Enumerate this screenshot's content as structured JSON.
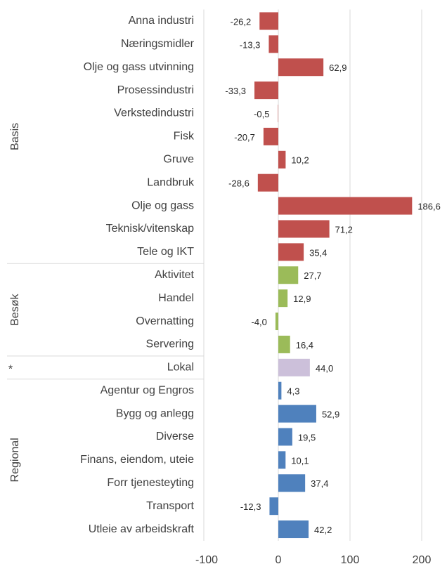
{
  "chart_data": {
    "type": "bar",
    "orientation": "horizontal",
    "categories": [
      "Anna industri",
      "Næringsmidler",
      "Olje og gass utvinning",
      "Prosessindustri",
      "Verkstedindustri",
      "Fisk",
      "Gruve",
      "Landbruk",
      "Olje og gass",
      "Teknisk/vitenskap",
      "Tele og IKT",
      "Aktivitet",
      "Handel",
      "Overnatting",
      "Servering",
      "Lokal",
      "Agentur og Engros",
      "Bygg og anlegg",
      "Diverse",
      "Finans, eiendom, uteie",
      "Forr tjenesteyting",
      "Transport",
      "Utleie av arbeidskraft"
    ],
    "series": [
      {
        "name": "Basis",
        "color": "#c0504d",
        "values": [
          -26.2,
          -13.3,
          62.9,
          -33.3,
          -0.5,
          -20.7,
          10.2,
          -28.6,
          186.6,
          71.2,
          35.4,
          null,
          null,
          null,
          null,
          null,
          null,
          null,
          null,
          null,
          null,
          null,
          null
        ],
        "value_labels": [
          "-26,2",
          "-13,3",
          "62,9",
          "-33,3",
          "-0,5",
          "-20,7",
          "10,2",
          "-28,6",
          "186,6",
          "71,2",
          "35,4",
          null,
          null,
          null,
          null,
          null,
          null,
          null,
          null,
          null,
          null,
          null,
          null
        ]
      },
      {
        "name": "Besøk",
        "color": "#9bbb59",
        "values": [
          null,
          null,
          null,
          null,
          null,
          null,
          null,
          null,
          null,
          null,
          null,
          27.7,
          12.9,
          -4.0,
          16.4,
          null,
          null,
          null,
          null,
          null,
          null,
          null,
          null
        ],
        "value_labels": [
          null,
          null,
          null,
          null,
          null,
          null,
          null,
          null,
          null,
          null,
          null,
          "27,7",
          "12,9",
          "-4,0",
          "16,4",
          null,
          null,
          null,
          null,
          null,
          null,
          null,
          null
        ]
      },
      {
        "name": "*",
        "color": "#ccc0da",
        "values": [
          null,
          null,
          null,
          null,
          null,
          null,
          null,
          null,
          null,
          null,
          null,
          null,
          null,
          null,
          null,
          44.0,
          null,
          null,
          null,
          null,
          null,
          null,
          null
        ],
        "value_labels": [
          null,
          null,
          null,
          null,
          null,
          null,
          null,
          null,
          null,
          null,
          null,
          null,
          null,
          null,
          null,
          "44,0",
          null,
          null,
          null,
          null,
          null,
          null,
          null
        ]
      },
      {
        "name": "Regional",
        "color": "#4f81bd",
        "values": [
          null,
          null,
          null,
          null,
          null,
          null,
          null,
          null,
          null,
          null,
          null,
          null,
          null,
          null,
          null,
          null,
          4.3,
          52.9,
          19.5,
          10.1,
          37.4,
          -12.3,
          42.2
        ],
        "value_labels": [
          null,
          null,
          null,
          null,
          null,
          null,
          null,
          null,
          null,
          null,
          null,
          null,
          null,
          null,
          null,
          null,
          "4,3",
          "52,9",
          "19,5",
          "10,1",
          "37,4",
          "-12,3",
          "42,2"
        ]
      }
    ],
    "xlim": [
      -100,
      200
    ],
    "xticks": [
      -100,
      0,
      100,
      200
    ],
    "grid": true
  }
}
